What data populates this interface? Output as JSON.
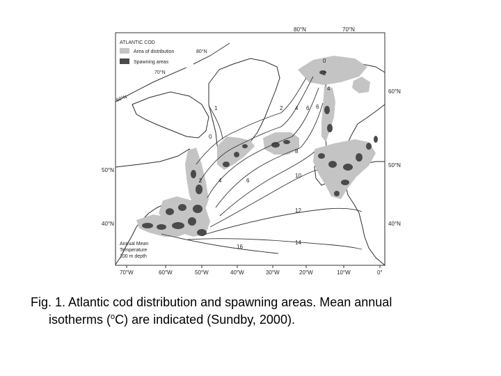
{
  "legend": {
    "title": "ATLANTIC COD",
    "items": [
      {
        "label": "Area of distribution",
        "color": "#c4c4c4"
      },
      {
        "label": "Spawning areas",
        "color": "#4a4a4a"
      }
    ]
  },
  "note": {
    "line1": "Annual Mean",
    "line2": "Temperature",
    "line3": "100 m depth"
  },
  "lat_labels": {
    "top_80": "80°N",
    "top_70": "70°N",
    "inner_80": "80°N",
    "inner_70": "70°N",
    "left_60": "60°N",
    "left_50": "50°N",
    "left_40": "40°N",
    "right_60": "60°N",
    "right_50": "50°N",
    "right_40": "40°N"
  },
  "lon_labels": [
    "70°W",
    "60°W",
    "50°W",
    "40°W",
    "30°W",
    "20°W",
    "10°W",
    "0°"
  ],
  "isotherm_labels": [
    "0",
    "2",
    "4",
    "6",
    "8",
    "10",
    "12",
    "14",
    "16",
    "1",
    "2",
    "4",
    "6",
    "0",
    "2",
    "4",
    "6"
  ],
  "caption": {
    "line1": "Fig. 1.  Atlantic cod distribution and spawning areas.  Mean annual",
    "line2_pre": "isotherms (",
    "line2_sup": "o",
    "line2_post": "C) are indicated (Sundby, 2000)."
  },
  "colors": {
    "distribution": "#c4c4c4",
    "spawning": "#4a4a4a",
    "land_outline": "#2a2a2a",
    "isotherm": "#333333"
  }
}
